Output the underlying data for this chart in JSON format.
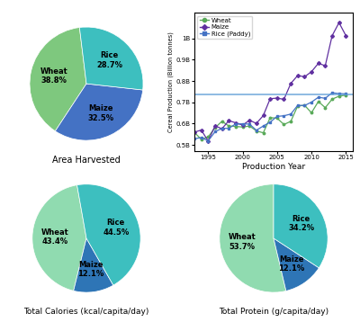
{
  "pie1": {
    "labels": [
      "Wheat",
      "Maize",
      "Rice"
    ],
    "values": [
      38.8,
      32.5,
      28.7
    ],
    "colors": [
      "#7ec87e",
      "#4472c4",
      "#3dbfbf"
    ],
    "title": "Area Harvested",
    "startangle": 97
  },
  "pie2": {
    "labels": [
      "Wheat",
      "Maize",
      "Rice"
    ],
    "values": [
      43.4,
      12.1,
      44.5
    ],
    "colors": [
      "#90dbb0",
      "#2e75b6",
      "#3dbfbf"
    ],
    "title": "Total Calories (kcal/capita/day)",
    "startangle": 100
  },
  "pie3": {
    "labels": [
      "Wheat",
      "Maize",
      "Rice"
    ],
    "values": [
      53.7,
      12.1,
      34.2
    ],
    "colors": [
      "#90dbb0",
      "#2e75b6",
      "#3dbfbf"
    ],
    "title": "Total Protein (g/capita/day)",
    "startangle": 90
  },
  "line": {
    "years": [
      1993,
      1994,
      1995,
      1996,
      1997,
      1998,
      1999,
      2000,
      2001,
      2002,
      2003,
      2004,
      2005,
      2006,
      2007,
      2008,
      2009,
      2010,
      2011,
      2012,
      2013,
      2014,
      2015
    ],
    "wheat": [
      0.559,
      0.526,
      0.538,
      0.581,
      0.611,
      0.589,
      0.587,
      0.584,
      0.589,
      0.566,
      0.557,
      0.628,
      0.626,
      0.596,
      0.611,
      0.683,
      0.686,
      0.651,
      0.704,
      0.675,
      0.715,
      0.729,
      0.734
    ],
    "maize": [
      0.56,
      0.57,
      0.518,
      0.59,
      0.576,
      0.614,
      0.604,
      0.593,
      0.616,
      0.601,
      0.638,
      0.717,
      0.72,
      0.714,
      0.789,
      0.826,
      0.82,
      0.844,
      0.883,
      0.872,
      1.013,
      1.074,
      1.013
    ],
    "rice": [
      0.529,
      0.535,
      0.519,
      0.562,
      0.578,
      0.578,
      0.599,
      0.599,
      0.598,
      0.569,
      0.589,
      0.607,
      0.634,
      0.637,
      0.645,
      0.686,
      0.685,
      0.701,
      0.724,
      0.719,
      0.745,
      0.741,
      0.74
    ],
    "hline": 0.735,
    "wheat_color": "#5aaa5a",
    "maize_color": "#6030a0",
    "rice_color": "#4472c4",
    "hline_color": "#5b9bd5",
    "xlabel": "Production Year",
    "ylabel": "Cereal Production (Billion tonnes)",
    "xticks": [
      1995,
      2000,
      2005,
      2010,
      2015
    ],
    "ytick_labels": [
      "0.5B",
      "0.6B",
      "0.7B",
      "0.8B",
      "0.9B",
      "1B"
    ],
    "ytick_vals": [
      0.5,
      0.6,
      0.7,
      0.8,
      0.9,
      1.0
    ]
  }
}
